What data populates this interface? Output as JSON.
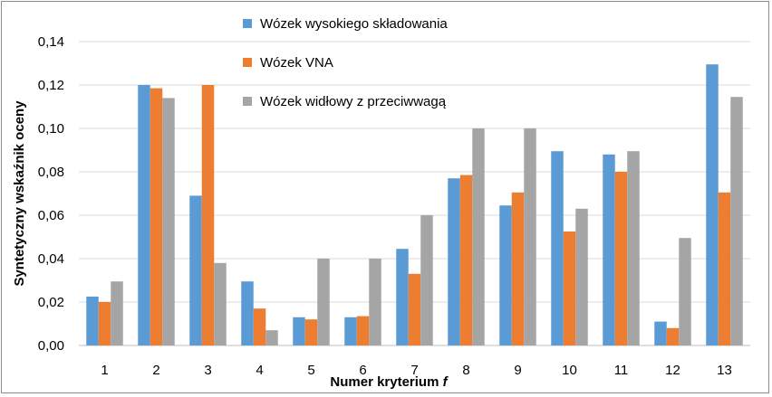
{
  "chart_data": {
    "type": "bar",
    "title": "",
    "xlabel": "Numer kryterium",
    "xlabel_symbol": "f",
    "ylabel": "Syntetyczny wskaźnik oceny",
    "ylim": [
      0,
      0.14
    ],
    "yticks": [
      "0,00",
      "0,02",
      "0,04",
      "0,06",
      "0,08",
      "0,10",
      "0,12",
      "0,14"
    ],
    "ytick_values": [
      0,
      0.02,
      0.04,
      0.06,
      0.08,
      0.1,
      0.12,
      0.14
    ],
    "grid": true,
    "legend_position": "top-center",
    "categories": [
      "1",
      "2",
      "3",
      "4",
      "5",
      "6",
      "7",
      "8",
      "9",
      "10",
      "11",
      "12",
      "13"
    ],
    "series": [
      {
        "name": "Wózek wysokiego składowania",
        "color": "#5b9bd5",
        "values": [
          0.0225,
          0.12,
          0.069,
          0.0295,
          0.013,
          0.013,
          0.0445,
          0.077,
          0.0645,
          0.0895,
          0.088,
          0.011,
          0.1295
        ]
      },
      {
        "name": "Wózek VNA",
        "color": "#ed7d31",
        "values": [
          0.02,
          0.1185,
          0.12,
          0.017,
          0.012,
          0.0135,
          0.033,
          0.0785,
          0.0705,
          0.0525,
          0.08,
          0.008,
          0.0705
        ]
      },
      {
        "name": "Wózek widłowy z przeciwwagą",
        "color": "#a5a5a5",
        "values": [
          0.0295,
          0.114,
          0.038,
          0.007,
          0.04,
          0.04,
          0.06,
          0.1,
          0.1,
          0.063,
          0.0895,
          0.0495,
          0.1145
        ]
      }
    ]
  }
}
